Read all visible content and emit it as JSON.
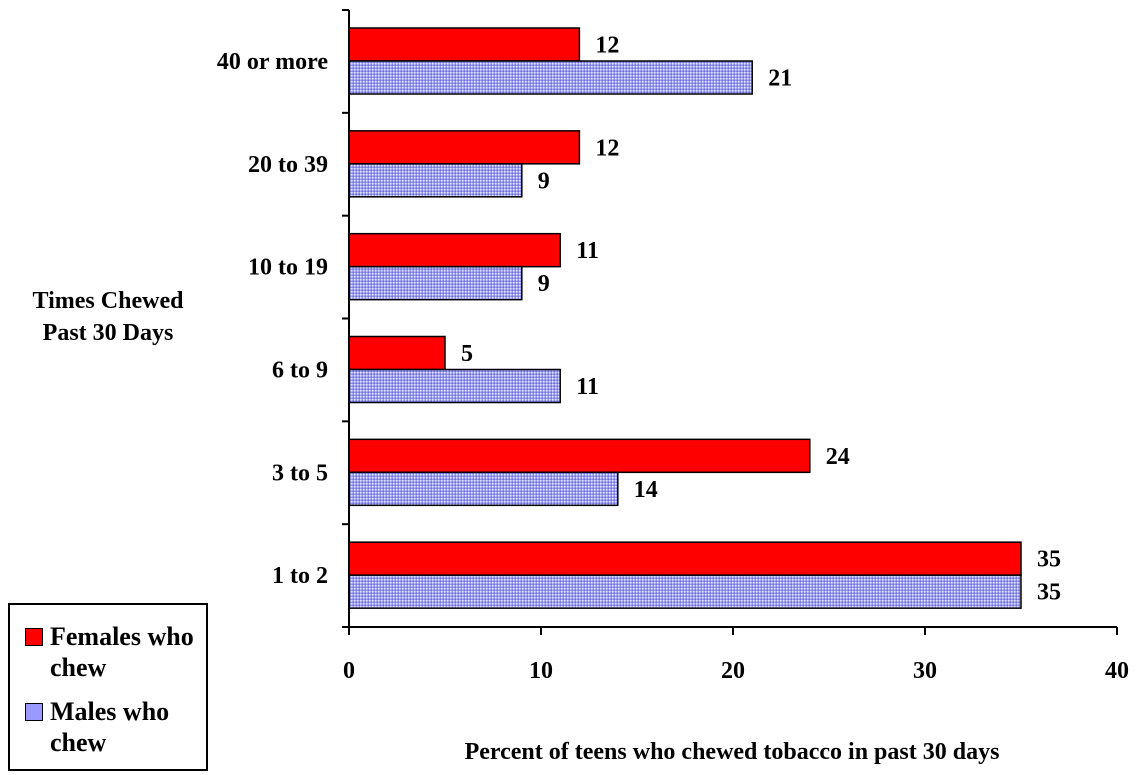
{
  "chart_data": {
    "type": "bar",
    "orientation": "horizontal",
    "categories": [
      "40 or more",
      "20 to 39",
      "10 to 19",
      "6 to 9",
      "3 to 5",
      "1 to 2"
    ],
    "series": [
      {
        "name": "Females who chew",
        "color": "#ff0000",
        "values": [
          12,
          12,
          11,
          5,
          24,
          35
        ]
      },
      {
        "name": "Males who chew",
        "color": "#9999ff",
        "values": [
          21,
          9,
          9,
          11,
          14,
          35
        ]
      }
    ],
    "xlabel": "Percent of teens who chewed tobacco in past 30 days",
    "ylabel": [
      "Times Chewed",
      "Past 30 Days"
    ],
    "xlim": [
      0,
      40
    ],
    "xticks": [
      0,
      10,
      20,
      30,
      40
    ],
    "grid": false,
    "legend_position": "bottom-left"
  }
}
